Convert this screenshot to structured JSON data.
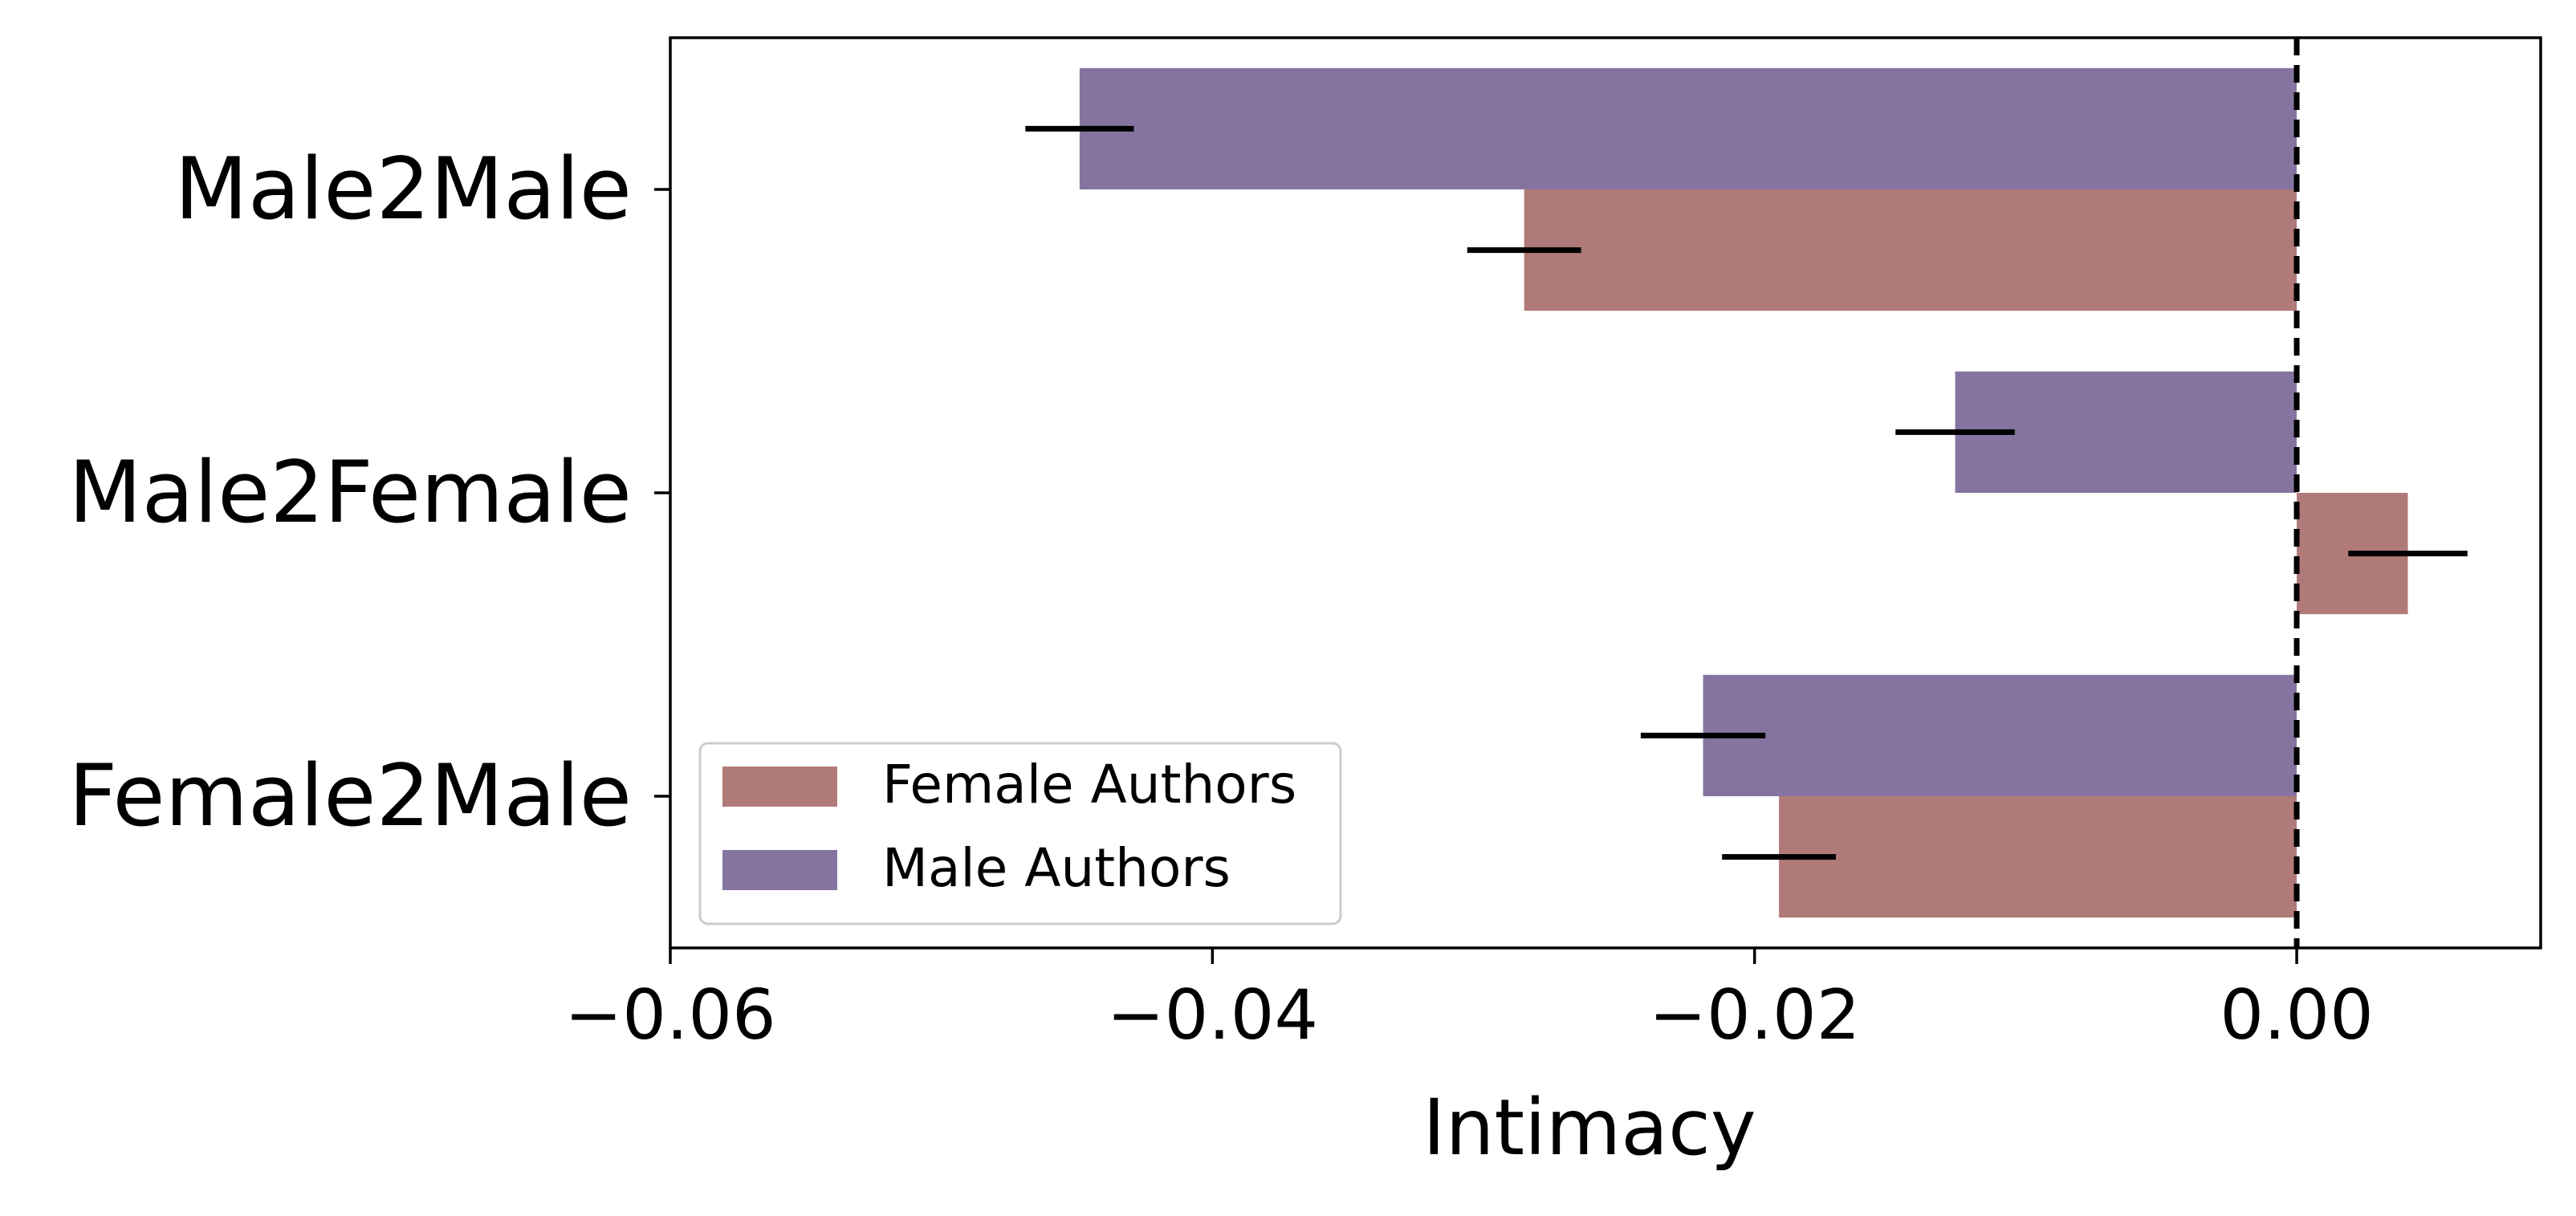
{
  "chart_data": {
    "type": "bar",
    "orientation": "horizontal",
    "categories": [
      "Male2Male",
      "Male2Female",
      "Female2Male"
    ],
    "series": [
      {
        "name": "Male Authors",
        "color": "#8574a0",
        "values": [
          -0.0449,
          -0.0126,
          -0.0219
        ],
        "error": [
          0.002,
          0.0022,
          0.0023
        ]
      },
      {
        "name": "Female Authors",
        "color": "#b07a78",
        "values": [
          -0.0285,
          0.0041,
          -0.0191
        ],
        "error": [
          0.0021,
          0.0022,
          0.0021
        ]
      }
    ],
    "xlabel": "Intimacy",
    "ylabel": "",
    "xlim": [
      -0.06,
      0.009
    ],
    "xticks": [
      -0.06,
      -0.04,
      -0.02,
      0.0
    ],
    "xtick_labels": [
      "−0.06",
      "−0.04",
      "−0.02",
      "0.00"
    ],
    "reference_line": {
      "x": 0.0,
      "style": "dashed",
      "color": "#000000"
    },
    "grid": false,
    "legend": {
      "placement": "lower-left",
      "entries": [
        "Female Authors",
        "Male Authors"
      ]
    }
  }
}
